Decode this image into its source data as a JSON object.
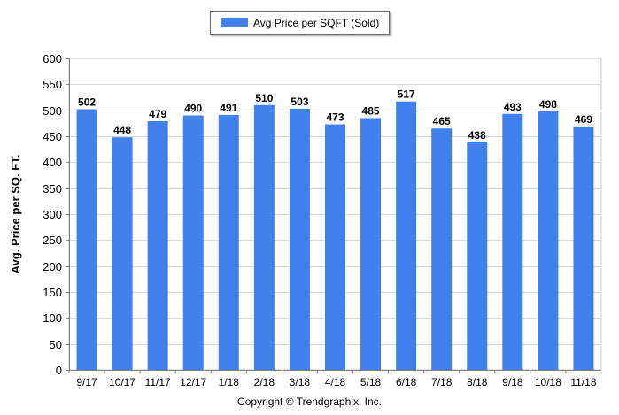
{
  "chart_data": {
    "type": "bar",
    "categories": [
      "9/17",
      "10/17",
      "11/17",
      "12/17",
      "1/18",
      "2/18",
      "3/18",
      "4/18",
      "5/18",
      "6/18",
      "7/18",
      "8/18",
      "9/18",
      "10/18",
      "11/18"
    ],
    "series": [
      {
        "name": "Avg Price per SQFT (Sold)",
        "values": [
          502,
          448,
          479,
          490,
          491,
          510,
          503,
          473,
          485,
          517,
          465,
          438,
          493,
          498,
          469
        ]
      }
    ],
    "ylabel": "Avg. Price per SQ. FT.",
    "xlabel": "",
    "ylim": [
      0,
      600
    ],
    "yticks": [
      0,
      50,
      100,
      150,
      200,
      250,
      300,
      350,
      400,
      450,
      500,
      550,
      600
    ],
    "grid": true,
    "legend_position": "top-center",
    "bar_color": "#4181ee",
    "data_labels": true
  },
  "footer": {
    "copyright": "Copyright © Trendgraphix, Inc."
  }
}
